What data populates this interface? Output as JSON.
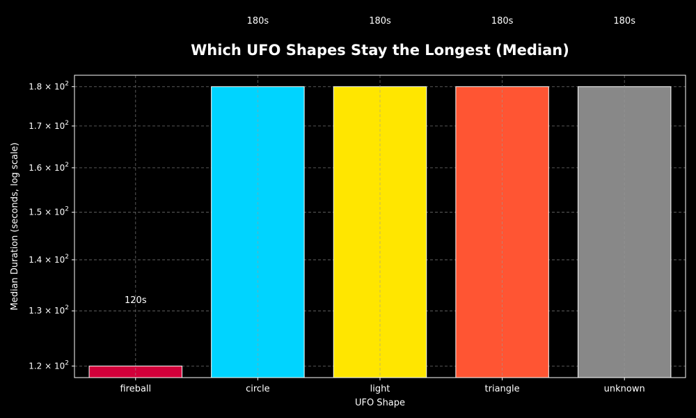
{
  "chart_data": {
    "type": "bar",
    "title": "Which UFO Shapes Stay the Longest (Median)",
    "xlabel": "UFO Shape",
    "ylabel": "Median Duration (seconds, log scale)",
    "y_scale": "log",
    "ylim": [
      118,
      183
    ],
    "grid": true,
    "categories": [
      "fireball",
      "circle",
      "light",
      "triangle",
      "unknown"
    ],
    "values": [
      120,
      180,
      180,
      180,
      180
    ],
    "bar_colors": [
      "#d1003a",
      "#00d4ff",
      "#ffe600",
      "#ff5533",
      "#888888"
    ],
    "data_labels": [
      "120s",
      "180s",
      "180s",
      "180s",
      "180s"
    ],
    "y_ticks": [
      {
        "value": 120,
        "mantissa": "1.2"
      },
      {
        "value": 130,
        "mantissa": "1.3"
      },
      {
        "value": 140,
        "mantissa": "1.4"
      },
      {
        "value": 150,
        "mantissa": "1.5"
      },
      {
        "value": 160,
        "mantissa": "1.6"
      },
      {
        "value": 170,
        "mantissa": "1.7"
      },
      {
        "value": 180,
        "mantissa": "1.8"
      }
    ],
    "tick_base": "10",
    "tick_exponent": "2"
  }
}
